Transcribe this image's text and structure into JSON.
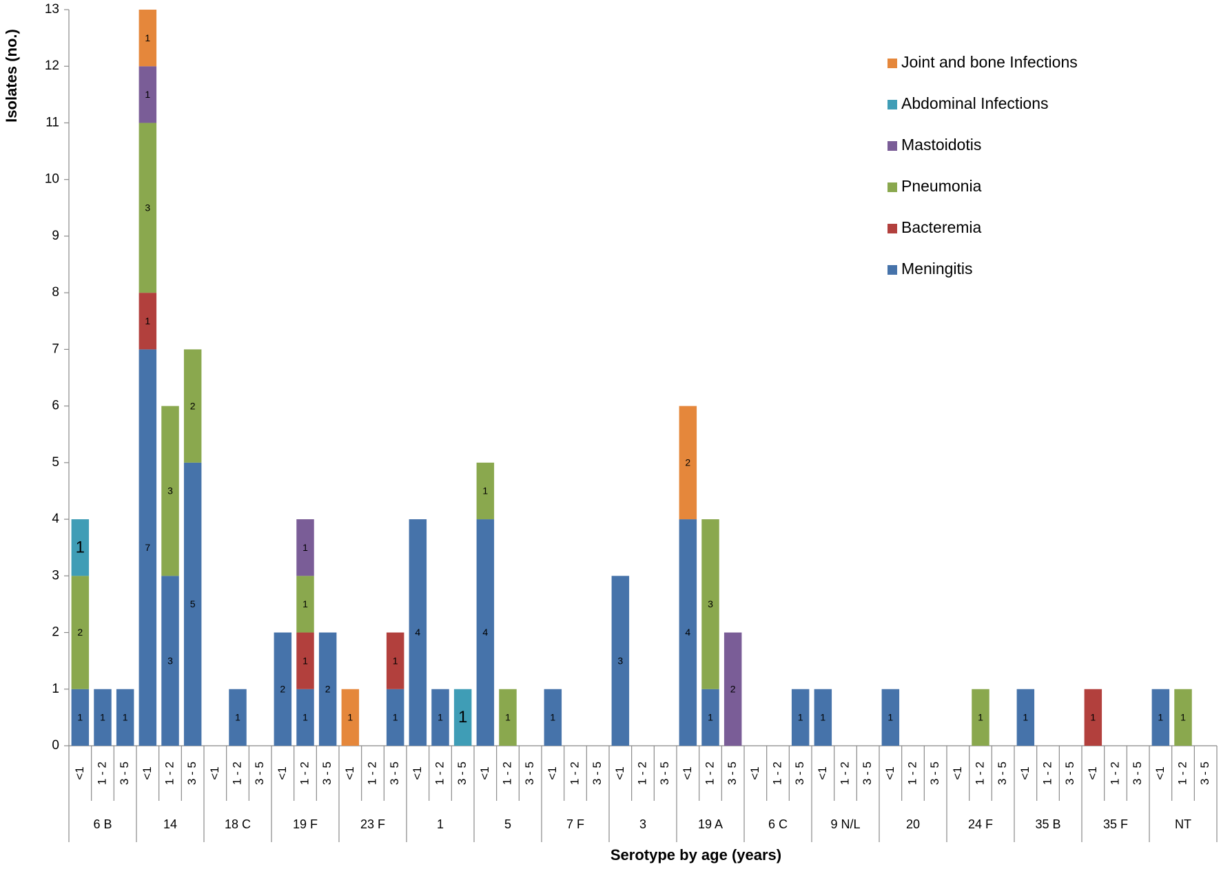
{
  "chart_data": {
    "type": "stacked_bar",
    "ylabel": "Isolates (no.)",
    "xlabel": "Serotype by age (years)",
    "ylim": [
      0,
      13
    ],
    "yticks": [
      0,
      1,
      2,
      3,
      4,
      5,
      6,
      7,
      8,
      9,
      10,
      11,
      12,
      13
    ],
    "legend_position": "top-right",
    "groups": [
      "6 B",
      "14",
      "18 C",
      "19 F",
      "23 F",
      "1",
      "5",
      "7 F",
      "3",
      "19 A",
      "6 C",
      "9 N/L",
      "20",
      "24 F",
      "35 B",
      "35 F",
      "NT"
    ],
    "categories": [
      "<1",
      "1 - 2",
      "3 - 5",
      "<1",
      "1 - 2",
      "3 - 5",
      "<1",
      "1 - 2",
      "3 - 5",
      "<1",
      "1 - 2",
      "3 - 5",
      "<1",
      "1 - 2",
      "3 - 5",
      "<1",
      "1 - 2",
      "3 - 5",
      "<1",
      "1 - 2",
      "3 - 5",
      "<1",
      "1 - 2",
      "3 - 5",
      "<1",
      "1 - 2",
      "3 - 5",
      "<1",
      "1 - 2",
      "3 - 5",
      "<1",
      "1 - 2",
      "3 - 5",
      "<1",
      "1 - 2",
      "3 - 5",
      "<1",
      "1 - 2",
      "3 - 5",
      "<1",
      "1 - 2",
      "3 - 5",
      "<1",
      "1 - 2",
      "3 - 5",
      "<1",
      "1 - 2",
      "3 - 5",
      "<1",
      "1 - 2",
      "3 - 5"
    ],
    "series": [
      {
        "name": "Meningitis",
        "color": "#4673aa",
        "values": [
          1,
          1,
          1,
          7,
          3,
          5,
          null,
          1,
          null,
          2,
          1,
          2,
          null,
          null,
          1,
          4,
          1,
          null,
          4,
          null,
          null,
          1,
          null,
          null,
          3,
          null,
          null,
          4,
          1,
          null,
          null,
          null,
          1,
          1,
          null,
          null,
          1,
          null,
          null,
          null,
          null,
          null,
          1,
          null,
          null,
          null,
          null,
          null,
          1,
          null,
          null
        ]
      },
      {
        "name": "Bacteremia",
        "color": "#b2403d",
        "values": [
          null,
          null,
          null,
          1,
          null,
          null,
          null,
          null,
          null,
          null,
          1,
          null,
          null,
          null,
          1,
          null,
          null,
          null,
          null,
          null,
          null,
          null,
          null,
          null,
          null,
          null,
          null,
          null,
          null,
          null,
          null,
          null,
          null,
          null,
          null,
          null,
          null,
          null,
          null,
          null,
          null,
          null,
          null,
          null,
          null,
          1,
          null,
          null,
          null,
          null,
          null
        ]
      },
      {
        "name": "Pneumonia",
        "color": "#8aa84e",
        "values": [
          2,
          null,
          null,
          3,
          3,
          2,
          null,
          null,
          null,
          null,
          1,
          null,
          null,
          null,
          null,
          null,
          null,
          null,
          1,
          1,
          null,
          null,
          null,
          null,
          null,
          null,
          null,
          null,
          3,
          null,
          null,
          null,
          null,
          null,
          null,
          null,
          null,
          null,
          null,
          null,
          1,
          null,
          null,
          null,
          null,
          null,
          null,
          null,
          null,
          1,
          null
        ]
      },
      {
        "name": "Mastoidotis",
        "color": "#7a5d97",
        "values": [
          null,
          null,
          null,
          1,
          null,
          null,
          null,
          null,
          null,
          null,
          1,
          null,
          null,
          null,
          null,
          null,
          null,
          null,
          null,
          null,
          null,
          null,
          null,
          null,
          null,
          null,
          null,
          null,
          null,
          2,
          null,
          null,
          null,
          null,
          null,
          null,
          null,
          null,
          null,
          null,
          null,
          null,
          null,
          null,
          null,
          null,
          null,
          null,
          null,
          null,
          null
        ]
      },
      {
        "name": "Abdominal Infections",
        "color": "#3f9db6",
        "values": [
          1,
          null,
          null,
          null,
          null,
          null,
          null,
          null,
          null,
          null,
          null,
          null,
          null,
          null,
          null,
          null,
          null,
          1,
          null,
          null,
          null,
          null,
          null,
          null,
          null,
          null,
          null,
          null,
          null,
          null,
          null,
          null,
          null,
          null,
          null,
          null,
          null,
          null,
          null,
          null,
          null,
          null,
          null,
          null,
          null,
          null,
          null,
          null,
          null,
          null,
          null
        ]
      },
      {
        "name": "Joint and bone Infections",
        "color": "#e5873b",
        "values": [
          null,
          null,
          null,
          1,
          null,
          null,
          null,
          null,
          null,
          null,
          null,
          null,
          1,
          null,
          null,
          null,
          null,
          null,
          null,
          null,
          null,
          null,
          null,
          null,
          null,
          null,
          null,
          2,
          null,
          null,
          null,
          null,
          null,
          null,
          null,
          null,
          null,
          null,
          null,
          null,
          null,
          null,
          null,
          null,
          null,
          null,
          null,
          null,
          null,
          null,
          null
        ]
      }
    ]
  }
}
